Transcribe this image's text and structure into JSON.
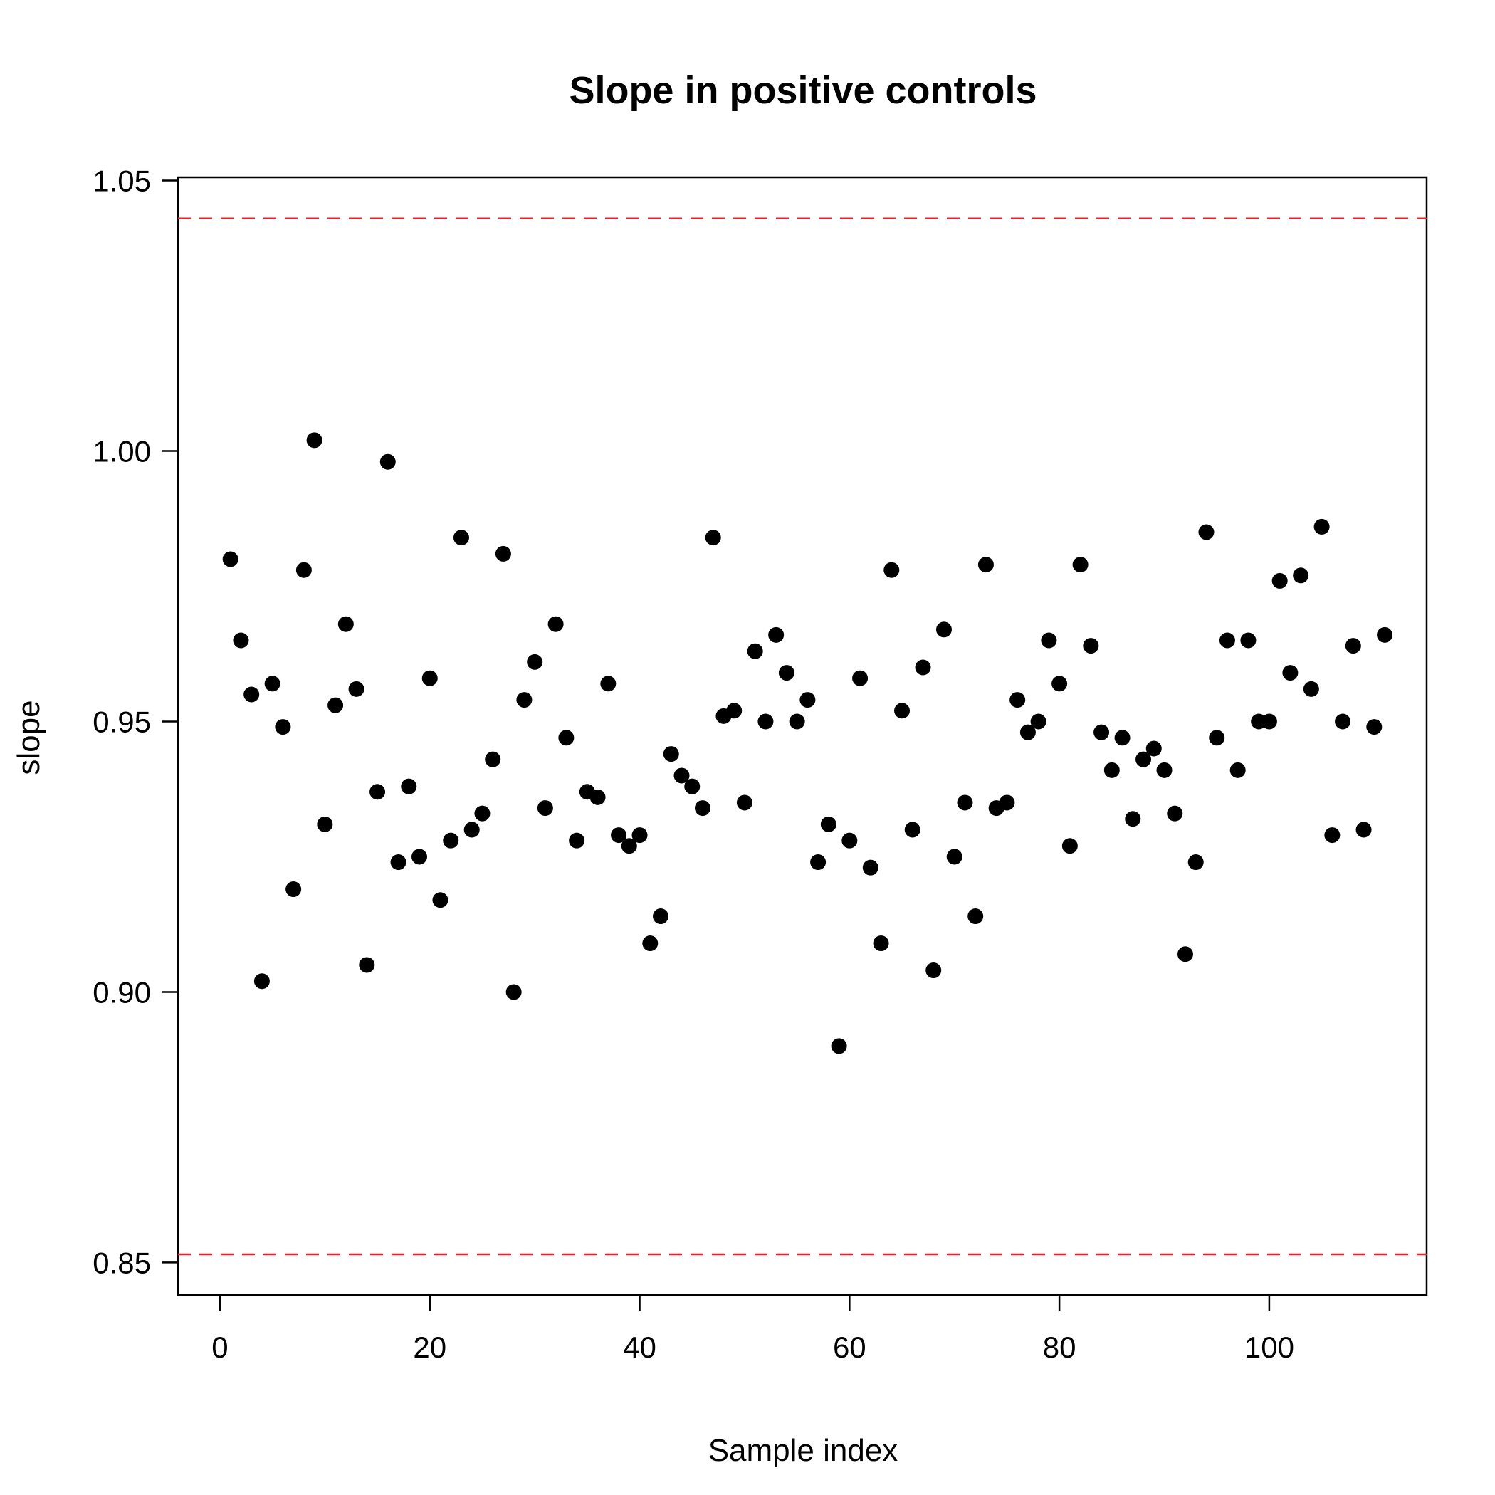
{
  "chart_data": {
    "type": "scatter",
    "title": "Slope in positive controls",
    "xlabel": "Sample index",
    "ylabel": "slope",
    "xlim": [
      -4,
      115
    ],
    "ylim": [
      0.844,
      1.0506
    ],
    "x_ticks": [
      0,
      20,
      40,
      60,
      80,
      100
    ],
    "x_tick_labels": [
      "0",
      "20",
      "40",
      "60",
      "80",
      "100"
    ],
    "y_ticks": [
      0.85,
      0.9,
      0.95,
      1.0,
      1.05
    ],
    "y_tick_labels": [
      "0.85",
      "0.90",
      "0.95",
      "1.00",
      "1.05"
    ],
    "grid": false,
    "legend": "none",
    "reference_lines": [
      {
        "axis": "y",
        "value": 1.043,
        "color": "#e8222a",
        "style": "dashed"
      },
      {
        "axis": "y",
        "value": 0.8515,
        "color": "#e8222a",
        "style": "dashed"
      }
    ],
    "series": [
      {
        "color": "#000000",
        "x": [
          1,
          2,
          3,
          4,
          5,
          6,
          7,
          8,
          9,
          10,
          11,
          12,
          13,
          14,
          15,
          16,
          17,
          18,
          19,
          20,
          21,
          22,
          23,
          24,
          25,
          26,
          27,
          28,
          29,
          30,
          31,
          32,
          33,
          34,
          35,
          36,
          37,
          38,
          39,
          40,
          41,
          42,
          43,
          44,
          45,
          46,
          47,
          48,
          49,
          50,
          51,
          52,
          53,
          54,
          55,
          56,
          57,
          58,
          59,
          60,
          61,
          62,
          63,
          64,
          65,
          66,
          67,
          68,
          69,
          70,
          71,
          72,
          73,
          74,
          75,
          76,
          77,
          78,
          79,
          80,
          81,
          82,
          83,
          84,
          85,
          86,
          87,
          88,
          89,
          90,
          91,
          92,
          93,
          94,
          95,
          96,
          97,
          98,
          99,
          100,
          101,
          102,
          103,
          104,
          105,
          106,
          107,
          108,
          109,
          110,
          111
        ],
        "y": [
          0.98,
          0.965,
          0.955,
          0.902,
          0.957,
          0.949,
          0.919,
          0.978,
          1.002,
          0.931,
          0.953,
          0.968,
          0.956,
          0.905,
          0.937,
          0.998,
          0.924,
          0.938,
          0.925,
          0.958,
          0.917,
          0.928,
          0.984,
          0.93,
          0.933,
          0.943,
          0.981,
          0.9,
          0.954,
          0.961,
          0.934,
          0.968,
          0.947,
          0.928,
          0.937,
          0.936,
          0.957,
          0.929,
          0.927,
          0.929,
          0.909,
          0.914,
          0.944,
          0.94,
          0.938,
          0.934,
          0.984,
          0.951,
          0.952,
          0.935,
          0.963,
          0.95,
          0.966,
          0.959,
          0.95,
          0.954,
          0.924,
          0.931,
          0.89,
          0.928,
          0.958,
          0.923,
          0.909,
          0.978,
          0.952,
          0.93,
          0.96,
          0.904,
          0.967,
          0.925,
          0.935,
          0.914,
          0.979,
          0.934,
          0.935,
          0.954,
          0.948,
          0.95,
          0.965,
          0.957,
          0.927,
          0.979,
          0.964,
          0.948,
          0.941,
          0.947,
          0.932,
          0.943,
          0.945,
          0.941,
          0.933,
          0.907,
          0.924,
          0.985,
          0.947,
          0.965,
          0.941,
          0.965,
          0.95,
          0.95,
          0.976,
          0.959,
          0.977,
          0.956,
          0.986,
          0.929,
          0.95,
          0.964,
          0.93,
          0.949,
          0.966
        ]
      }
    ]
  }
}
